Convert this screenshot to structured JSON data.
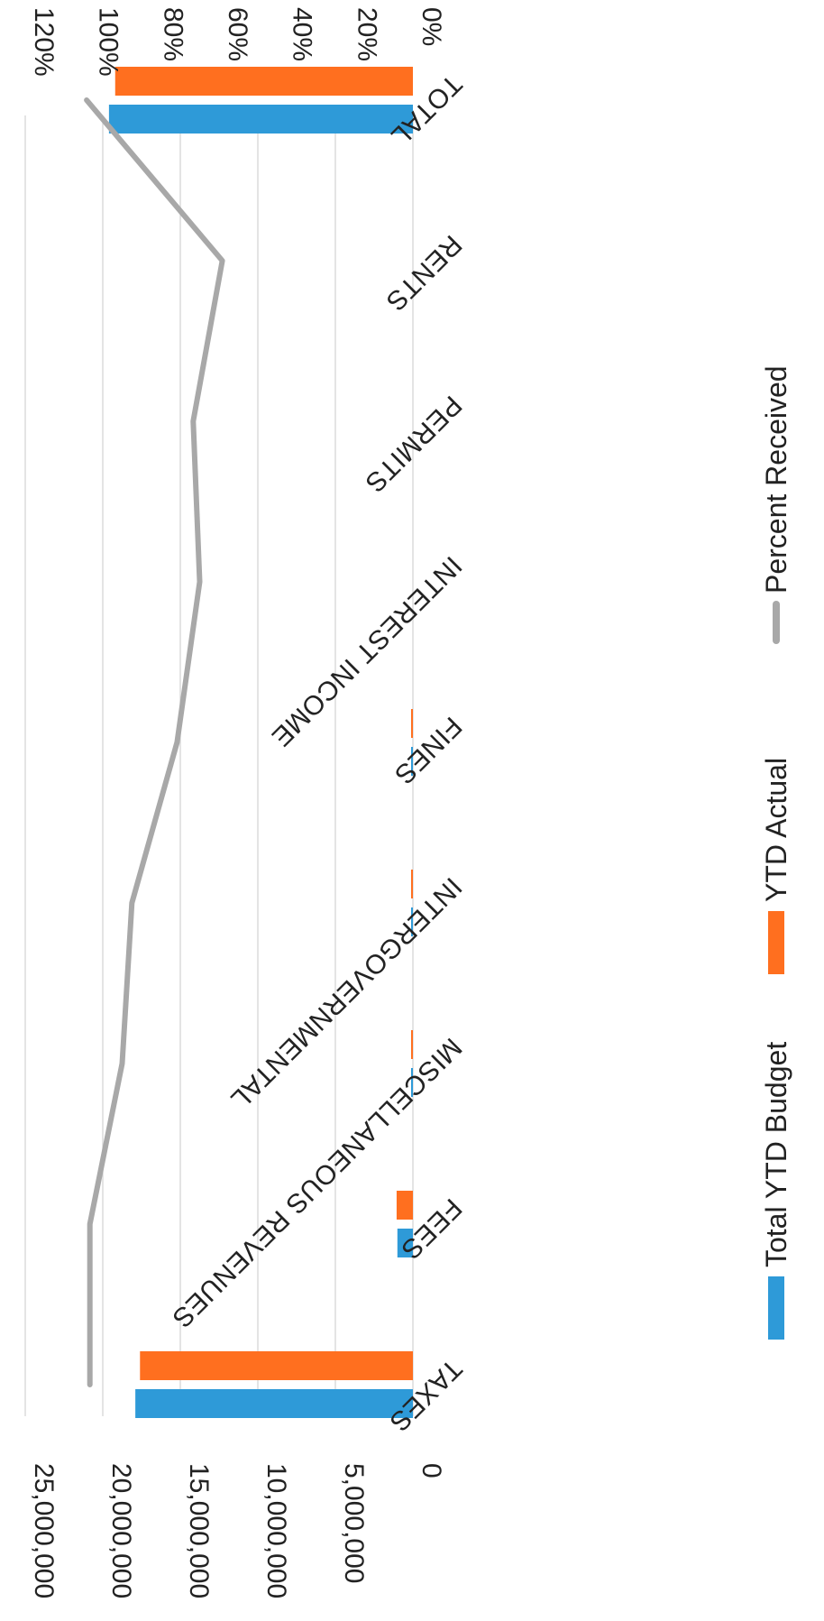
{
  "chart_data": {
    "type": "bar",
    "categories": [
      "TAXES",
      "FEES",
      "MISCELLANEOUS REVENUES",
      "INTERGOVERNMENTAL",
      "FINES",
      "INTEREST INCOME",
      "PERMITS",
      "RENTS",
      "TOTAL"
    ],
    "series": [
      {
        "name": "Total YTD Budget",
        "type": "bar",
        "axis": "primary",
        "color": "#2E9AD8",
        "values": [
          17900000,
          1000000,
          40000,
          50000,
          25000,
          0,
          0,
          0,
          19600000
        ]
      },
      {
        "name": "YTD Actual",
        "type": "bar",
        "axis": "primary",
        "color": "#FF6F1F",
        "values": [
          17600000,
          1050000,
          40000,
          50000,
          20000,
          0,
          0,
          0,
          19200000
        ]
      },
      {
        "name": "Percent Received",
        "type": "line",
        "axis": "secondary",
        "color": "#A8A8A8",
        "values": [
          1.0,
          1.0,
          0.9,
          0.87,
          0.73,
          0.66,
          0.68,
          0.59,
          1.01
        ]
      }
    ],
    "primary_axis": {
      "min": 0,
      "max": 25000000,
      "ticks": [
        "0",
        "5,000,000",
        "10,000,000",
        "15,000,000",
        "20,000,000",
        "25,000,000"
      ]
    },
    "secondary_axis": {
      "min": 0,
      "max": 1.2,
      "ticks": [
        "0%",
        "20%",
        "40%",
        "60%",
        "80%",
        "100%",
        "120%"
      ]
    },
    "grid": true,
    "legend_position": "bottom",
    "orientation": "rotated-90-clockwise"
  }
}
